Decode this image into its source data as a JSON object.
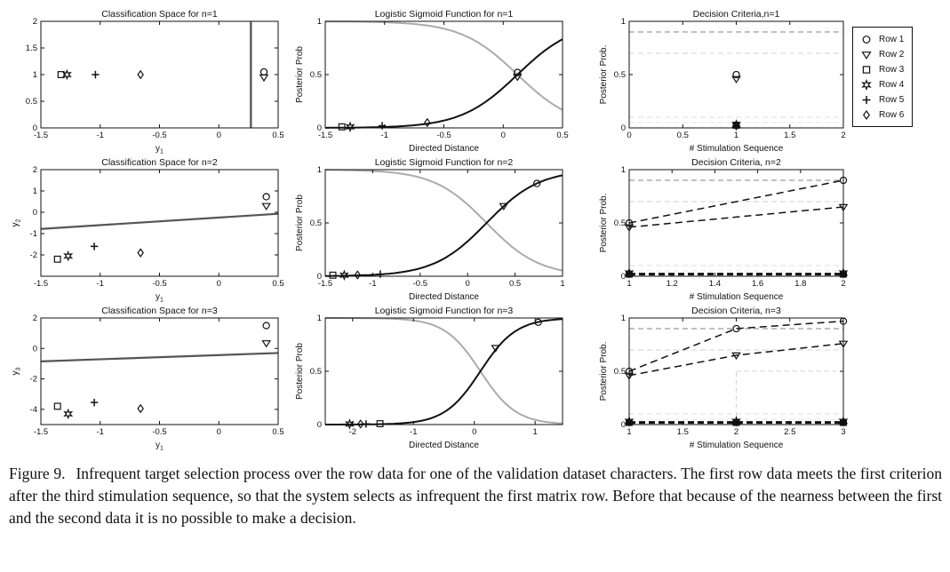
{
  "figure": {
    "caption_label": "Figure 9.",
    "caption_text": "Infrequent target selection process over the row data for one of the validation dataset characters. The first row data meets the first criterion after the third stimulation sequence, so that the system selects as infrequent the first matrix row. Before that because of the nearness between the first and the second data it is no possible to make a decision."
  },
  "colors": {
    "marker": "#111111",
    "sigmoid_black": "#111111",
    "sigmoid_gray": "#ababab",
    "boundary_line": "#555555",
    "criterion_dark": "#9c9c9c",
    "criterion_light": "#d2d2d2"
  },
  "legend": {
    "entries": [
      {
        "label": "Row 1",
        "marker": "circle"
      },
      {
        "label": "Row 2",
        "marker": "tri"
      },
      {
        "label": "Row 3",
        "marker": "square"
      },
      {
        "label": "Row 4",
        "marker": "star"
      },
      {
        "label": "Row 5",
        "marker": "plus"
      },
      {
        "label": "Row 6",
        "marker": "diamond"
      }
    ]
  },
  "chart_data": [
    {
      "name": "classification-space-n1",
      "type": "scatter",
      "title": "Classification Space for n=1",
      "xlabel": "y_1",
      "ylabel": "",
      "xlim": [
        -1.5,
        0.5
      ],
      "ylim": [
        0,
        2
      ],
      "xticks": [
        -1.5,
        -1,
        -0.5,
        0,
        0.5
      ],
      "yticks": [
        0,
        0.5,
        1,
        1.5,
        2
      ],
      "elements": [
        {
          "kind": "vline",
          "x": 0.27,
          "color": "#5a5a5a",
          "width": 2.4
        },
        {
          "kind": "markers",
          "color": "#111",
          "points": [
            {
              "m": "square",
              "x": -1.33,
              "y": 1
            },
            {
              "m": "star",
              "x": -1.28,
              "y": 1
            },
            {
              "m": "plus",
              "x": -1.04,
              "y": 1
            },
            {
              "m": "diamond",
              "x": -0.66,
              "y": 1
            },
            {
              "m": "circle",
              "x": 0.38,
              "y": 1.05
            },
            {
              "m": "tri",
              "x": 0.38,
              "y": 0.95
            }
          ]
        }
      ]
    },
    {
      "name": "logistic-sigmoid-n1",
      "type": "line",
      "title": "Logistic Sigmoid Function for n=1",
      "xlabel": "Directed Distance",
      "ylabel": "Posterior Prob",
      "xlim": [
        -1.5,
        0.5
      ],
      "ylim": [
        0,
        1
      ],
      "xticks": [
        -1.5,
        -1,
        -0.5,
        0,
        0.5
      ],
      "yticks": [
        0,
        0.5,
        1
      ],
      "elements": [
        {
          "kind": "sigmoid",
          "x0": 0.12,
          "k": 4.2,
          "dir": -1,
          "color": "#ababab",
          "width": 2
        },
        {
          "kind": "sigmoid",
          "x0": 0.12,
          "k": 4.2,
          "dir": 1,
          "color": "#111111",
          "width": 2
        },
        {
          "kind": "markers",
          "color": "#111",
          "points": [
            {
              "m": "square",
              "x": -1.36,
              "y": 0.01
            },
            {
              "m": "star",
              "x": -1.29,
              "y": 0.01
            },
            {
              "m": "plus",
              "x": -1.02,
              "y": 0.02
            },
            {
              "m": "diamond",
              "x": -0.64,
              "y": 0.05
            },
            {
              "m": "circle",
              "x": 0.12,
              "y": 0.52
            },
            {
              "m": "tri",
              "x": 0.12,
              "y": 0.48
            }
          ]
        }
      ]
    },
    {
      "name": "decision-criteria-n1",
      "type": "scatter",
      "title": "Decision Criteria,n=1",
      "xlabel": "# Stimulation Sequence",
      "ylabel": "Posterior Prob.",
      "xlim": [
        0,
        2
      ],
      "ylim": [
        0,
        1
      ],
      "xticks": [
        0,
        0.5,
        1,
        1.5,
        2
      ],
      "yticks": [
        0,
        0.5,
        1
      ],
      "elements": [
        {
          "kind": "hline",
          "y": 0.9,
          "color": "#9c9c9c",
          "dash": "6,4",
          "width": 1.2
        },
        {
          "kind": "hline",
          "y": 0.7,
          "color": "#d2d2d2",
          "dash": "6,4",
          "width": 1
        },
        {
          "kind": "hline",
          "y": 0.1,
          "color": "#dcdcdc",
          "dash": "6,4",
          "width": 1
        },
        {
          "kind": "hline",
          "y": 0.05,
          "color": "#e4e4e4",
          "dash": "6,4",
          "width": 1
        },
        {
          "kind": "markers",
          "color": "#111",
          "points": [
            {
              "m": "circle",
              "x": 1,
              "y": 0.5
            },
            {
              "m": "tri",
              "x": 1,
              "y": 0.46
            }
          ]
        },
        {
          "kind": "markers",
          "color": "#111",
          "fill": "#111",
          "points": [
            {
              "m": "star",
              "x": 1,
              "y": 0.03
            },
            {
              "m": "square",
              "x": 1,
              "y": 0.025
            },
            {
              "m": "diamond",
              "x": 1,
              "y": 0.02
            },
            {
              "m": "plus",
              "x": 1,
              "y": 0.015
            }
          ]
        }
      ]
    },
    {
      "name": "classification-space-n2",
      "type": "scatter",
      "title": "Classification Space for n=2",
      "xlabel": "y_1",
      "ylabel": "y_2",
      "xlim": [
        -1.5,
        0.5
      ],
      "ylim": [
        -3,
        2
      ],
      "xticks": [
        -1.5,
        -1,
        -0.5,
        0,
        0.5
      ],
      "yticks": [
        -2,
        -1,
        0,
        1,
        2
      ],
      "elements": [
        {
          "kind": "segment",
          "x1": -1.5,
          "y1": -0.78,
          "x2": 0.5,
          "y2": -0.07,
          "color": "#555555",
          "width": 2.2
        },
        {
          "kind": "markers",
          "color": "#111",
          "points": [
            {
              "m": "circle",
              "x": 0.4,
              "y": 0.73
            },
            {
              "m": "tri",
              "x": 0.4,
              "y": 0.3
            },
            {
              "m": "square",
              "x": -1.36,
              "y": -2.2
            },
            {
              "m": "star",
              "x": -1.27,
              "y": -2.05
            },
            {
              "m": "plus",
              "x": -1.05,
              "y": -1.6
            },
            {
              "m": "diamond",
              "x": -0.66,
              "y": -1.9
            }
          ]
        }
      ]
    },
    {
      "name": "logistic-sigmoid-n2",
      "type": "line",
      "title": "Logistic Sigmoid Function for n=2",
      "xlabel": "Directed Distance",
      "ylabel": "Posterior Prob",
      "xlim": [
        -1.5,
        1
      ],
      "ylim": [
        0,
        1
      ],
      "xticks": [
        -1.5,
        -1,
        -0.5,
        0,
        0.5,
        1
      ],
      "yticks": [
        0,
        0.5,
        1
      ],
      "elements": [
        {
          "kind": "sigmoid",
          "x0": 0.2,
          "k": 3.6,
          "dir": -1,
          "color": "#ababab",
          "width": 2
        },
        {
          "kind": "sigmoid",
          "x0": 0.2,
          "k": 3.6,
          "dir": 1,
          "color": "#111111",
          "width": 2
        },
        {
          "kind": "markers",
          "color": "#111",
          "points": [
            {
              "m": "square",
              "x": -1.42,
              "y": 0.01
            },
            {
              "m": "star",
              "x": -1.3,
              "y": 0.01
            },
            {
              "m": "diamond",
              "x": -1.16,
              "y": 0.012
            },
            {
              "m": "plus",
              "x": -0.92,
              "y": 0.02
            },
            {
              "m": "tri",
              "x": 0.38,
              "y": 0.66
            },
            {
              "m": "circle",
              "x": 0.73,
              "y": 0.87
            }
          ]
        }
      ]
    },
    {
      "name": "decision-criteria-n2",
      "type": "line",
      "title": "Decision Criteria, n=2",
      "xlabel": "# Stimulation Sequence",
      "ylabel": "Posterior Prob.",
      "xlim": [
        1,
        2
      ],
      "ylim": [
        0,
        1
      ],
      "xticks": [
        1,
        1.2,
        1.4,
        1.6,
        1.8,
        2
      ],
      "yticks": [
        0,
        0.5,
        1
      ],
      "elements": [
        {
          "kind": "hline",
          "y": 0.9,
          "color": "#9c9c9c",
          "dash": "6,4",
          "width": 1.2
        },
        {
          "kind": "hline",
          "y": 0.7,
          "color": "#d2d2d2",
          "dash": "6,4",
          "width": 1
        },
        {
          "kind": "hline",
          "y": 0.1,
          "color": "#dcdcdc",
          "dash": "6,4",
          "width": 1
        },
        {
          "kind": "hline",
          "y": 0.05,
          "color": "#e4e4e4",
          "dash": "6,4",
          "width": 1
        },
        {
          "kind": "series",
          "points": [
            [
              1,
              0.5
            ],
            [
              2,
              0.9
            ]
          ],
          "marker": "circle",
          "color": "#111",
          "dash": "8,5",
          "width": 1.5
        },
        {
          "kind": "series",
          "points": [
            [
              1,
              0.46
            ],
            [
              2,
              0.65
            ]
          ],
          "marker": "tri",
          "color": "#111",
          "dash": "8,5",
          "width": 1.5
        },
        {
          "kind": "series",
          "points": [
            [
              1,
              0.02
            ],
            [
              2,
              0.02
            ]
          ],
          "color": "#111",
          "dash": "7,4",
          "width": 3
        },
        {
          "kind": "markers",
          "color": "#111",
          "fill": "#111",
          "points": [
            {
              "m": "star",
              "x": 1,
              "y": 0.03
            },
            {
              "m": "square",
              "x": 1,
              "y": 0.02
            },
            {
              "m": "diamond",
              "x": 1,
              "y": 0.025
            },
            {
              "m": "star",
              "x": 2,
              "y": 0.03
            },
            {
              "m": "square",
              "x": 2,
              "y": 0.02
            },
            {
              "m": "diamond",
              "x": 2,
              "y": 0.025
            }
          ]
        }
      ]
    },
    {
      "name": "classification-space-n3",
      "type": "scatter",
      "title": "Classification Space for n=3",
      "xlabel": "y_1",
      "ylabel": "y_3",
      "xlim": [
        -1.5,
        0.5
      ],
      "ylim": [
        -5,
        2
      ],
      "xticks": [
        -1.5,
        -1,
        -0.5,
        0,
        0.5
      ],
      "yticks": [
        -4,
        -2,
        0,
        2
      ],
      "elements": [
        {
          "kind": "segment",
          "x1": -1.5,
          "y1": -0.85,
          "x2": 0.5,
          "y2": -0.3,
          "color": "#555555",
          "width": 2.2
        },
        {
          "kind": "markers",
          "color": "#111",
          "points": [
            {
              "m": "circle",
              "x": 0.4,
              "y": 1.5
            },
            {
              "m": "tri",
              "x": 0.4,
              "y": 0.35
            },
            {
              "m": "square",
              "x": -1.36,
              "y": -3.8
            },
            {
              "m": "star",
              "x": -1.27,
              "y": -4.3
            },
            {
              "m": "plus",
              "x": -1.05,
              "y": -3.55
            },
            {
              "m": "diamond",
              "x": -0.66,
              "y": -3.95
            }
          ]
        }
      ]
    },
    {
      "name": "logistic-sigmoid-n3",
      "type": "line",
      "title": "Logistic Sigmoid Function for n=3",
      "xlabel": "Directed Distance",
      "ylabel": "Posterior Prob",
      "xlim": [
        -2.45,
        1.45
      ],
      "ylim": [
        0,
        1
      ],
      "xticks": [
        -2,
        -1,
        0,
        1
      ],
      "yticks": [
        0,
        0.5,
        1
      ],
      "elements": [
        {
          "kind": "sigmoid",
          "x0": 0.1,
          "k": 3.4,
          "dir": -1,
          "color": "#ababab",
          "width": 2
        },
        {
          "kind": "sigmoid",
          "x0": 0.1,
          "k": 3.4,
          "dir": 1,
          "color": "#111111",
          "width": 2
        },
        {
          "kind": "markers",
          "color": "#111",
          "points": [
            {
              "m": "star",
              "x": -2.05,
              "y": 0.005
            },
            {
              "m": "diamond",
              "x": -1.87,
              "y": 0.005
            },
            {
              "m": "plus",
              "x": -1.78,
              "y": 0.006
            },
            {
              "m": "square",
              "x": -1.55,
              "y": 0.008
            },
            {
              "m": "tri",
              "x": 0.35,
              "y": 0.72
            },
            {
              "m": "circle",
              "x": 1.05,
              "y": 0.96
            }
          ]
        }
      ]
    },
    {
      "name": "decision-criteria-n3",
      "type": "line",
      "title": "Decision Criteria, n=3",
      "xlabel": "# Stimulation Sequence",
      "ylabel": "Posterior Prob.",
      "xlim": [
        1,
        3
      ],
      "ylim": [
        0,
        1
      ],
      "xticks": [
        1,
        1.5,
        2,
        2.5,
        3
      ],
      "yticks": [
        0,
        0.5,
        1
      ],
      "elements": [
        {
          "kind": "hline",
          "y": 0.9,
          "color": "#9c9c9c",
          "dash": "6,4",
          "width": 1.2
        },
        {
          "kind": "hline",
          "y": 0.7,
          "color": "#d2d2d2",
          "dash": "6,4",
          "width": 1
        },
        {
          "kind": "hline",
          "y": 0.1,
          "color": "#dcdcdc",
          "dash": "6,4",
          "width": 1
        },
        {
          "kind": "hline",
          "y": 0.05,
          "color": "#e4e4e4",
          "dash": "6,4",
          "width": 1
        },
        {
          "kind": "vline",
          "x": 2,
          "y1": 0,
          "y2": 0.5,
          "color": "#d2d2d2",
          "dash": "5,4",
          "width": 1
        },
        {
          "kind": "hline",
          "y": 0.5,
          "x1": 2,
          "x2": 3,
          "color": "#d2d2d2",
          "dash": "5,4",
          "width": 1
        },
        {
          "kind": "series",
          "points": [
            [
              1,
              0.5
            ],
            [
              2,
              0.9
            ],
            [
              3,
              0.97
            ]
          ],
          "marker": "circle",
          "color": "#111",
          "dash": "8,5",
          "width": 1.5
        },
        {
          "kind": "series",
          "points": [
            [
              1,
              0.46
            ],
            [
              2,
              0.65
            ],
            [
              3,
              0.76
            ]
          ],
          "marker": "tri",
          "color": "#111",
          "dash": "8,5",
          "width": 1.5
        },
        {
          "kind": "series",
          "points": [
            [
              1,
              0.02
            ],
            [
              3,
              0.02
            ]
          ],
          "color": "#111",
          "dash": "7,4",
          "width": 3
        },
        {
          "kind": "markers",
          "color": "#111",
          "fill": "#111",
          "points": [
            {
              "m": "star",
              "x": 1,
              "y": 0.03
            },
            {
              "m": "square",
              "x": 1,
              "y": 0.02
            },
            {
              "m": "star",
              "x": 2,
              "y": 0.03
            },
            {
              "m": "square",
              "x": 2,
              "y": 0.02
            },
            {
              "m": "star",
              "x": 3,
              "y": 0.03
            },
            {
              "m": "square",
              "x": 3,
              "y": 0.02
            }
          ]
        }
      ]
    }
  ]
}
